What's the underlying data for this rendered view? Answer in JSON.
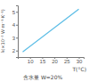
{
  "chart_data": {
    "type": "line",
    "x_label": "T(°C)",
    "y_label": "λ(×10⁻² W·m⁻¹·K⁻¹)",
    "annotation": "含水量 W=20%",
    "x": [
      7,
      30
    ],
    "values": [
      1.9,
      5.2
    ],
    "color": "#5bbde6",
    "xlim": [
      5,
      32
    ],
    "xticks": [
      10,
      15,
      20,
      25,
      30
    ],
    "ylim": [
      1.5,
      5.5
    ],
    "yticks": [
      2,
      3,
      4,
      5
    ],
    "grid": false
  }
}
